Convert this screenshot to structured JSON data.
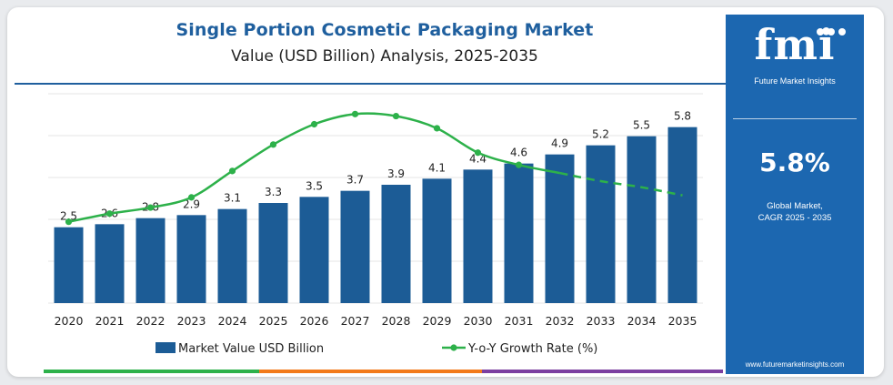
{
  "header": {
    "title": "Single Portion Cosmetic Packaging Market",
    "subtitle": "Value (USD Billion) Analysis, 2025-2035"
  },
  "sidebar": {
    "logo_text": "fmi",
    "logo_subtitle": "Future Market Insights",
    "cagr_value": "5.8%",
    "cagr_label_line1": "Global Market,",
    "cagr_label_line2": "CAGR 2025 - 2035",
    "website": "www.futuremarketinsights.com"
  },
  "colors": {
    "bar": "#1c5c96",
    "line": "#2db14a",
    "title": "#1f5f9e",
    "sidebar": "#1c67b0",
    "bottom_bar": [
      "#2db14a",
      "#f27a1a",
      "#7b3fa0"
    ]
  },
  "chart_data": {
    "type": "bar",
    "categories": [
      "2020",
      "2021",
      "2022",
      "2023",
      "2024",
      "2025",
      "2026",
      "2027",
      "2028",
      "2029",
      "2030",
      "2031",
      "2032",
      "2033",
      "2034",
      "2035"
    ],
    "series": [
      {
        "name": "Market Value USD Billion",
        "type": "bar",
        "values": [
          2.5,
          2.6,
          2.8,
          2.9,
          3.1,
          3.3,
          3.5,
          3.7,
          3.9,
          4.1,
          4.4,
          4.6,
          4.9,
          5.2,
          5.5,
          5.8
        ],
        "labels": [
          "2.5",
          "2.6",
          "2.8",
          "2.9",
          "3.1",
          "3.3",
          "3.5",
          "3.7",
          "3.9",
          "4.1",
          "4.4",
          "4.6",
          "4.9",
          "5.2",
          "5.5",
          "5.8"
        ]
      },
      {
        "name": "Y-o-Y Growth Rate (%)",
        "type": "line",
        "values": [
          4.0,
          4.4,
          4.7,
          5.2,
          6.5,
          7.8,
          8.8,
          9.3,
          9.2,
          8.6,
          7.4,
          6.8,
          6.4,
          6.0,
          5.7,
          5.3
        ],
        "dashed_from_index": 12
      }
    ],
    "title": "Single Portion Cosmetic Packaging Market",
    "ylim_bar": [
      0,
      6.9
    ],
    "ylim_line": [
      0,
      10.3
    ],
    "grid": "horizontal",
    "legend_position": "bottom"
  }
}
